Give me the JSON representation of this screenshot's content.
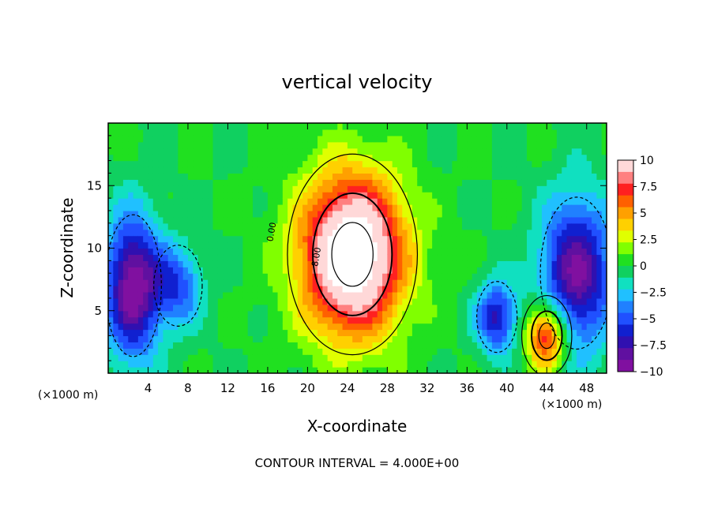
{
  "chart_data": {
    "type": "heatmap",
    "title": "vertical velocity",
    "xlabel": "X-coordinate",
    "ylabel": "Z-coordinate",
    "x_unit_label": "(×1000 m)",
    "xlim": [
      0,
      50
    ],
    "ylim": [
      0,
      20
    ],
    "x_ticks": [
      4,
      8,
      12,
      16,
      20,
      24,
      28,
      32,
      36,
      40,
      44,
      48
    ],
    "y_ticks": [
      5,
      10,
      15
    ],
    "colorbar": {
      "ticks": [
        10,
        7.5,
        5,
        2.5,
        0,
        -2.5,
        -5,
        -7.5,
        -10
      ],
      "tick_labels": [
        "10",
        "7.5",
        "5",
        "2.5",
        "0",
        "−2.5",
        "−5",
        "−7.5",
        "−10"
      ],
      "colors": [
        "#ffd8d8",
        "#ff8080",
        "#ff2020",
        "#ff6000",
        "#ffa000",
        "#ffd000",
        "#e0ff00",
        "#80ff00",
        "#20e020",
        "#10d060",
        "#10e0c0",
        "#20c0ff",
        "#2080ff",
        "#2050ff",
        "#1020d0",
        "#3010b0",
        "#6010a0",
        "#8010a0"
      ]
    },
    "features": [
      {
        "kind": "updraft",
        "x_center": 24.5,
        "z_center": 9.5,
        "x_radius": 6.5,
        "z_radius": 8.0,
        "peak": 14
      },
      {
        "kind": "updraft",
        "x_center": 44,
        "z_center": 3,
        "x_radius": 2.5,
        "z_radius": 3.2,
        "peak": 9
      },
      {
        "kind": "downdraft",
        "x_center": 2.5,
        "z_center": 7,
        "x_radius": 3.5,
        "z_radius": 7.0,
        "peak": -10
      },
      {
        "kind": "downdraft",
        "x_center": 47,
        "z_center": 8,
        "x_radius": 4.5,
        "z_radius": 7.5,
        "peak": -9
      },
      {
        "kind": "downdraft",
        "x_center": 39,
        "z_center": 4.5,
        "x_radius": 2.5,
        "z_radius": 3.5,
        "peak": -7
      },
      {
        "kind": "downdraft",
        "x_center": 7,
        "z_center": 7,
        "x_radius": 3.0,
        "z_radius": 4.0,
        "peak": -5
      }
    ],
    "contour_labels": [
      "0.00",
      "8.00"
    ],
    "contour_interval_text": "CONTOUR INTERVAL = 4.000E+00"
  }
}
